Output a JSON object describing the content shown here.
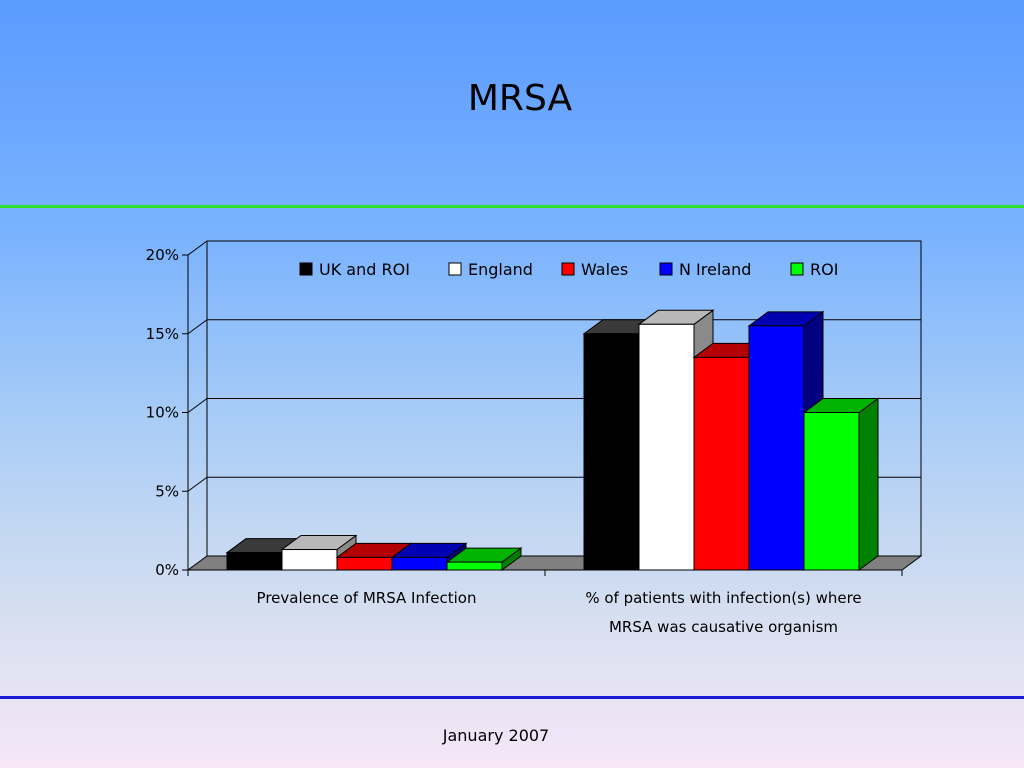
{
  "slide": {
    "title": "MRSA",
    "footer": "January 2007"
  },
  "colors": {
    "title_rule": "#2ce02c",
    "footer_rule": "#1a1ad6"
  },
  "chart_data": {
    "type": "bar",
    "style": "3d-clustered",
    "categories": [
      [
        "Prevalence of MRSA Infection"
      ],
      [
        "% of patients with infection(s) where",
        "MRSA was causative organism"
      ]
    ],
    "series": [
      {
        "name": "UK and ROI",
        "color": "#000000",
        "values": [
          1.1,
          15.0
        ]
      },
      {
        "name": "England",
        "color": "#ffffff",
        "values": [
          1.3,
          15.6
        ]
      },
      {
        "name": "Wales",
        "color": "#ff0000",
        "values": [
          0.8,
          13.5
        ]
      },
      {
        "name": "N Ireland",
        "color": "#0000ff",
        "values": [
          0.8,
          15.5
        ]
      },
      {
        "name": "ROI",
        "color": "#00ff00",
        "values": [
          0.5,
          10.0
        ]
      }
    ],
    "ylim": [
      0,
      20
    ],
    "yticks": [
      "0%",
      "5%",
      "10%",
      "15%",
      "20%"
    ],
    "ytick_values": [
      0,
      5,
      10,
      15,
      20
    ],
    "grid": true,
    "legend_position": "top"
  }
}
